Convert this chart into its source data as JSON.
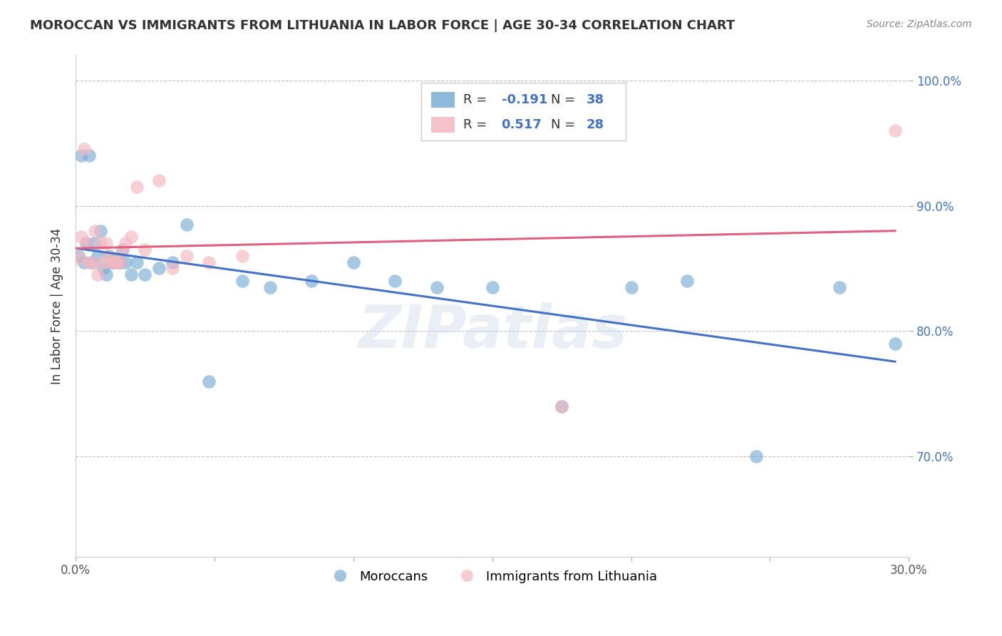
{
  "title": "MOROCCAN VS IMMIGRANTS FROM LITHUANIA IN LABOR FORCE | AGE 30-34 CORRELATION CHART",
  "source": "Source: ZipAtlas.com",
  "ylabel": "In Labor Force | Age 30-34",
  "legend_moroccan": "Moroccans",
  "legend_lithuania": "Immigrants from Lithuania",
  "r_moroccan": -0.191,
  "n_moroccan": 38,
  "r_lithuania": 0.517,
  "n_lithuania": 28,
  "xmin": 0.0,
  "xmax": 0.3,
  "ymin": 0.62,
  "ymax": 1.02,
  "moroccan_color": "#7aadd4",
  "morocco_line_color": "#4472c4",
  "lithuania_color": "#f4b8c1",
  "lithuania_line_color": "#e06080",
  "moroccan_x": [
    0.001,
    0.002,
    0.003,
    0.004,
    0.005,
    0.006,
    0.007,
    0.008,
    0.009,
    0.01,
    0.011,
    0.012,
    0.013,
    0.014,
    0.015,
    0.016,
    0.017,
    0.018,
    0.02,
    0.022,
    0.025,
    0.03,
    0.035,
    0.04,
    0.048,
    0.06,
    0.07,
    0.085,
    0.1,
    0.115,
    0.13,
    0.15,
    0.175,
    0.2,
    0.22,
    0.245,
    0.275,
    0.295
  ],
  "moroccan_y": [
    0.86,
    0.94,
    0.855,
    0.87,
    0.94,
    0.855,
    0.87,
    0.86,
    0.88,
    0.85,
    0.845,
    0.86,
    0.855,
    0.855,
    0.858,
    0.855,
    0.865,
    0.855,
    0.845,
    0.855,
    0.845,
    0.85,
    0.855,
    0.885,
    0.76,
    0.84,
    0.835,
    0.84,
    0.855,
    0.84,
    0.835,
    0.835,
    0.74,
    0.835,
    0.84,
    0.7,
    0.835,
    0.79
  ],
  "lithuania_x": [
    0.001,
    0.002,
    0.003,
    0.004,
    0.005,
    0.006,
    0.007,
    0.008,
    0.009,
    0.01,
    0.011,
    0.012,
    0.013,
    0.014,
    0.015,
    0.016,
    0.017,
    0.018,
    0.02,
    0.022,
    0.025,
    0.03,
    0.035,
    0.04,
    0.048,
    0.06,
    0.175,
    0.295
  ],
  "lithuania_y": [
    0.858,
    0.875,
    0.945,
    0.87,
    0.855,
    0.855,
    0.88,
    0.845,
    0.87,
    0.855,
    0.87,
    0.86,
    0.855,
    0.855,
    0.855,
    0.855,
    0.865,
    0.87,
    0.875,
    0.915,
    0.865,
    0.92,
    0.85,
    0.86,
    0.855,
    0.86,
    0.74,
    0.96
  ],
  "watermark": "ZIPatlas",
  "background_color": "#ffffff",
  "grid_color": "#bbbbbb"
}
